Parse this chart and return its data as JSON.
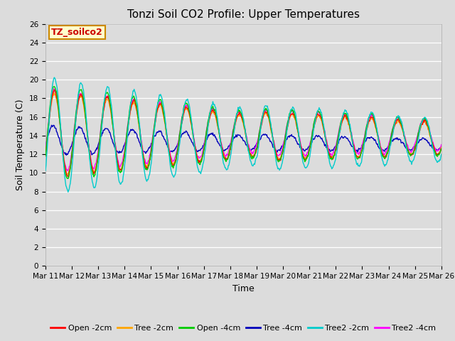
{
  "title": "Tonzi Soil CO2 Profile: Upper Temperatures",
  "xlabel": "Time",
  "ylabel": "Soil Temperature (C)",
  "ylim": [
    0,
    26
  ],
  "yticks": [
    0,
    2,
    4,
    6,
    8,
    10,
    12,
    14,
    16,
    18,
    20,
    22,
    24,
    26
  ],
  "bg_color": "#dcdcdc",
  "series_colors": {
    "Open -2cm": "#ff0000",
    "Tree -2cm": "#ffa500",
    "Open -4cm": "#00cc00",
    "Tree -4cm": "#0000bb",
    "Tree2 -2cm": "#00cccc",
    "Tree2 -4cm": "#ff00ff"
  },
  "annotation_text": "TZ_soilco2",
  "annotation_color": "#cc0000",
  "annotation_bg": "#ffffcc",
  "annotation_border": "#cc8800",
  "n_days": 15,
  "start_day": 11,
  "ppd": 48,
  "title_fontsize": 11,
  "label_fontsize": 9,
  "tick_fontsize": 7.5,
  "legend_fontsize": 8
}
